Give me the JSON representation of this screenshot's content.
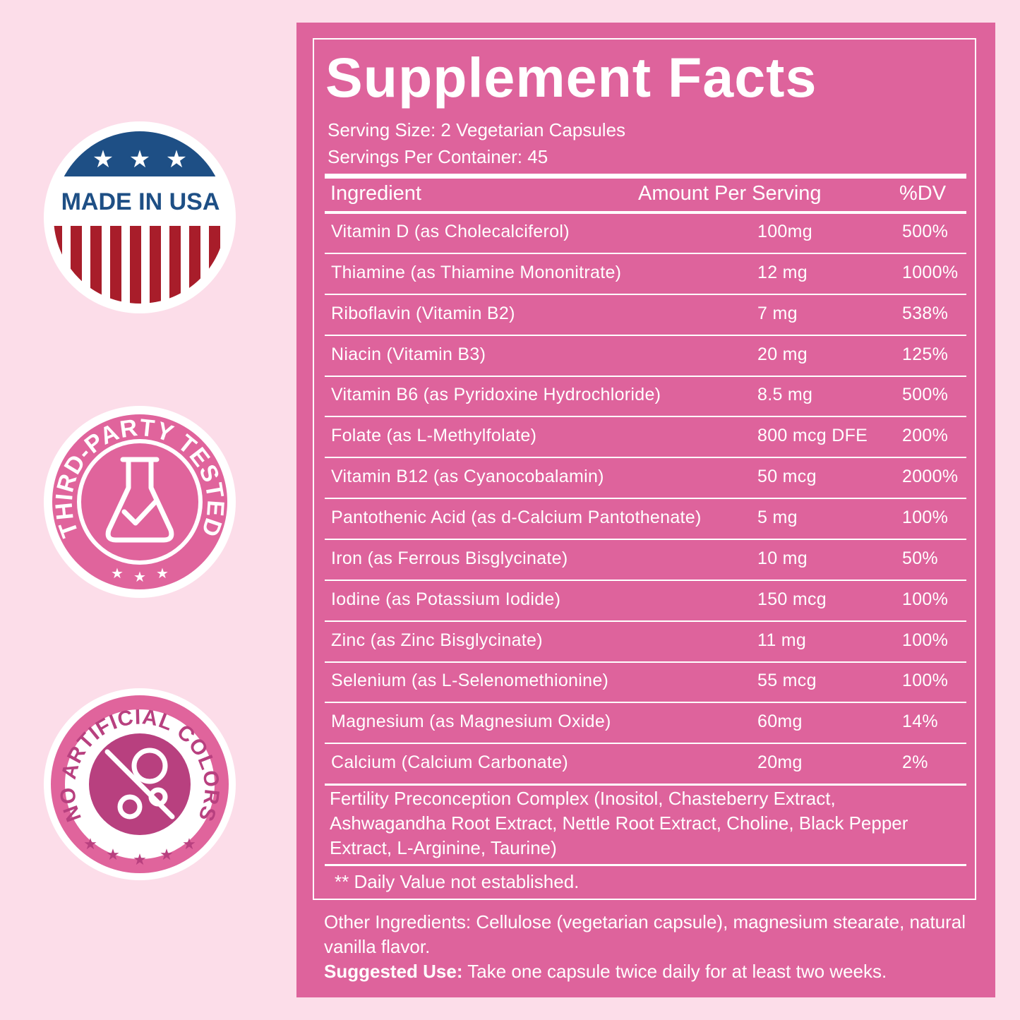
{
  "badges": {
    "usa": {
      "label": "MADE IN USA"
    },
    "tested": {
      "label": "THIRD-PARTY TESTED"
    },
    "colors": {
      "label": "NO ARTIFICIAL COLORS"
    }
  },
  "facts": {
    "title": "Supplement Facts",
    "serving_size": "Serving Size: 2 Vegetarian Capsules",
    "servings_per_container": "Servings Per Container: 45",
    "headers": {
      "ingredient": "Ingredient",
      "amount": "Amount Per Serving",
      "dv": "%DV"
    },
    "rows": [
      {
        "name": "Vitamin D (as Cholecalciferol)",
        "amount": "100mg",
        "dv": "500%"
      },
      {
        "name": "Thiamine (as Thiamine Mononitrate)",
        "amount": "12 mg",
        "dv": "1000%"
      },
      {
        "name": "Riboflavin (Vitamin B2)",
        "amount": "7 mg",
        "dv": "538%"
      },
      {
        "name": "Niacin (Vitamin B3)",
        "amount": "20 mg",
        "dv": "125%"
      },
      {
        "name": "Vitamin B6 (as Pyridoxine Hydrochloride)",
        "amount": "8.5 mg",
        "dv": "500%"
      },
      {
        "name": "Folate (as L-Methylfolate)",
        "amount": "800 mcg DFE",
        "dv": "200%"
      },
      {
        "name": "Vitamin B12 (as Cyanocobalamin)",
        "amount": "50 mcg",
        "dv": "2000%"
      },
      {
        "name": "Pantothenic Acid (as d-Calcium Pantothenate)",
        "amount": "5 mg",
        "dv": "100%"
      },
      {
        "name": "Iron (as Ferrous Bisglycinate)",
        "amount": "10 mg",
        "dv": "50%"
      },
      {
        "name": "Iodine (as Potassium Iodide)",
        "amount": "150 mcg",
        "dv": "100%"
      },
      {
        "name": "Zinc (as Zinc Bisglycinate)",
        "amount": "11 mg",
        "dv": "100%"
      },
      {
        "name": "Selenium (as L-Selenomethionine)",
        "amount": "55 mcg",
        "dv": "100%"
      },
      {
        "name": "Magnesium (as Magnesium Oxide)",
        "amount": "60mg",
        "dv": "14%"
      },
      {
        "name": "Calcium (Calcium Carbonate)",
        "amount": "20mg",
        "dv": "2%"
      }
    ],
    "complex": "Fertility Preconception Complex (Inositol, Chasteberry Extract, Ashwagandha Root Extract, Nettle Root Extract, Choline, Black Pepper Extract, L-Arginine, Taurine)",
    "dv_note": "** Daily Value not established."
  },
  "other_ingredients": "Other Ingredients: Cellulose (vegetarian capsule), magnesium stearate, natural vanilla flavor.",
  "suggested_use_label": "Suggested Use:",
  "suggested_use_text": " Take one capsule twice daily for at least two weeks.",
  "colors": {
    "background": "#fcdde9",
    "panel": "#de639c",
    "badge_pink": "#e0649c",
    "badge_magenta": "#b8407f",
    "usa_blue": "#1e4f85",
    "usa_red": "#a81d2a"
  }
}
